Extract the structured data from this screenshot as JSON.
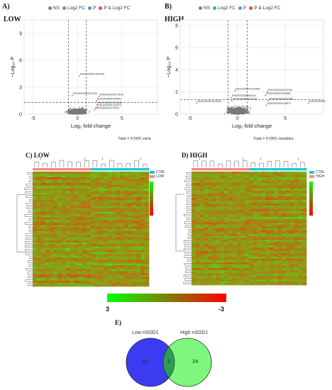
{
  "panels": {
    "a_label": "A)",
    "b_label": "B)",
    "a_title": "LOW",
    "b_title": "HIGH",
    "c_label": "C) LOW",
    "d_label": "D) HIGH",
    "e_label": "E)"
  },
  "volcano": {
    "legend": [
      {
        "label": "NS",
        "color": "#808080"
      },
      {
        "label": "Log2 FC",
        "color": "#4caf50"
      },
      {
        "label": "P",
        "color": "#5b8fd6"
      },
      {
        "label": "P & Log2 FC",
        "color": "#e04848"
      }
    ],
    "ylabel": "−Log₁₀ P",
    "xlabel": "Log₂ fold change",
    "a_total": "Total = 57955 varia",
    "b_total": "Total = 57955 variables"
  },
  "chart_data": [
    {
      "type": "scatter",
      "panel": "A",
      "title": "LOW",
      "xlabel": "Log₂ fold change",
      "ylabel": "−Log₁₀ P",
      "xticks": [
        "-5",
        "0",
        "5"
      ],
      "yticks": [
        "0",
        "3",
        "6",
        "9"
      ],
      "xlim": [
        -6,
        9
      ],
      "ylim": [
        0,
        10.5
      ],
      "fc_cutoff": [
        -1,
        1
      ],
      "p_cutoff": 1.3,
      "grid": true,
      "legend_position": "top",
      "annotations": [
        {
          "label": "ENSG00000165355",
          "x": 0.3,
          "y": 4.4
        },
        {
          "label": "ENSG00000257242",
          "x": -0.5,
          "y": 2.2
        },
        {
          "label": "ENSG00000171014",
          "x": 2.5,
          "y": 2.1
        },
        {
          "label": "ENSG00000109950",
          "x": 2.2,
          "y": 1.6
        },
        {
          "label": "ENSG00000113981",
          "x": 2.3,
          "y": 1.2
        },
        {
          "label": "ENSG00000122679",
          "x": 2.2,
          "y": 0.9
        },
        {
          "label": "ENSG00000174292",
          "x": 2.0,
          "y": 0.6
        }
      ],
      "total": "Total = 57955 varia"
    },
    {
      "type": "scatter",
      "panel": "B",
      "title": "HIGH",
      "xlabel": "Log₂ fold change",
      "ylabel": "−Log₁₀ P",
      "xticks": [
        "-5",
        "0",
        "5"
      ],
      "yticks": [
        "0",
        "2",
        "4",
        "6",
        "8"
      ],
      "xlim": [
        -6,
        9
      ],
      "ylim": [
        0,
        8.5
      ],
      "fc_cutoff": [
        -1,
        1
      ],
      "p_cutoff": 1.3,
      "grid": true,
      "legend_position": "top",
      "annotations": [
        {
          "label": "ENSG00000144390",
          "x": -0.2,
          "y": 2.2
        },
        {
          "label": "ENSG00000222046",
          "x": 3.2,
          "y": 2.1
        },
        {
          "label": "ENSG00000204389",
          "x": 3.0,
          "y": 1.8
        },
        {
          "label": "ENSG00000167680",
          "x": 3.3,
          "y": 1.3
        },
        {
          "label": "ENSG00000128917",
          "x": 3.1,
          "y": 0.9
        },
        {
          "label": "ENSG00000260024",
          "x": -0.6,
          "y": 1.6
        },
        {
          "label": "ENSG00000131016",
          "x": -0.5,
          "y": 1.3
        },
        {
          "label": "ENSG00000123000",
          "x": -4.2,
          "y": 1.1
        },
        {
          "label": "ENSG000000",
          "x": 7.5,
          "y": 1.1
        }
      ],
      "total": "Total = 57955 variables"
    },
    {
      "type": "heatmap",
      "panel": "C",
      "title": "LOW",
      "groups": [
        {
          "name": "CTRL",
          "color": "#1fc8d8"
        },
        {
          "name": "LOW",
          "color": "#f28b82"
        }
      ],
      "color_scale": {
        "min": -3,
        "max": 3,
        "low_color": "#ff0000",
        "high_color": "#00ff00"
      }
    },
    {
      "type": "heatmap",
      "panel": "D",
      "title": "HIGH",
      "groups": [
        {
          "name": "CTRL",
          "color": "#1fc8d8"
        },
        {
          "name": "HIGH",
          "color": "#f28b82"
        }
      ],
      "color_scale": {
        "min": -3,
        "max": 3,
        "low_color": "#ff0000",
        "high_color": "#00ff00"
      }
    }
  ],
  "colorbar": {
    "left_value": "3",
    "right_value": "-3",
    "left_color": "#00ff00",
    "right_color": "#ff0000"
  },
  "venn": {
    "left_label": "Low nSOD1",
    "right_label": "High nSOD1",
    "left_only": "61",
    "overlap": "1",
    "right_only": "24",
    "left_color": "#3b3bf2",
    "right_color": "#7df77d",
    "overlap_color": "#2e9c58"
  }
}
